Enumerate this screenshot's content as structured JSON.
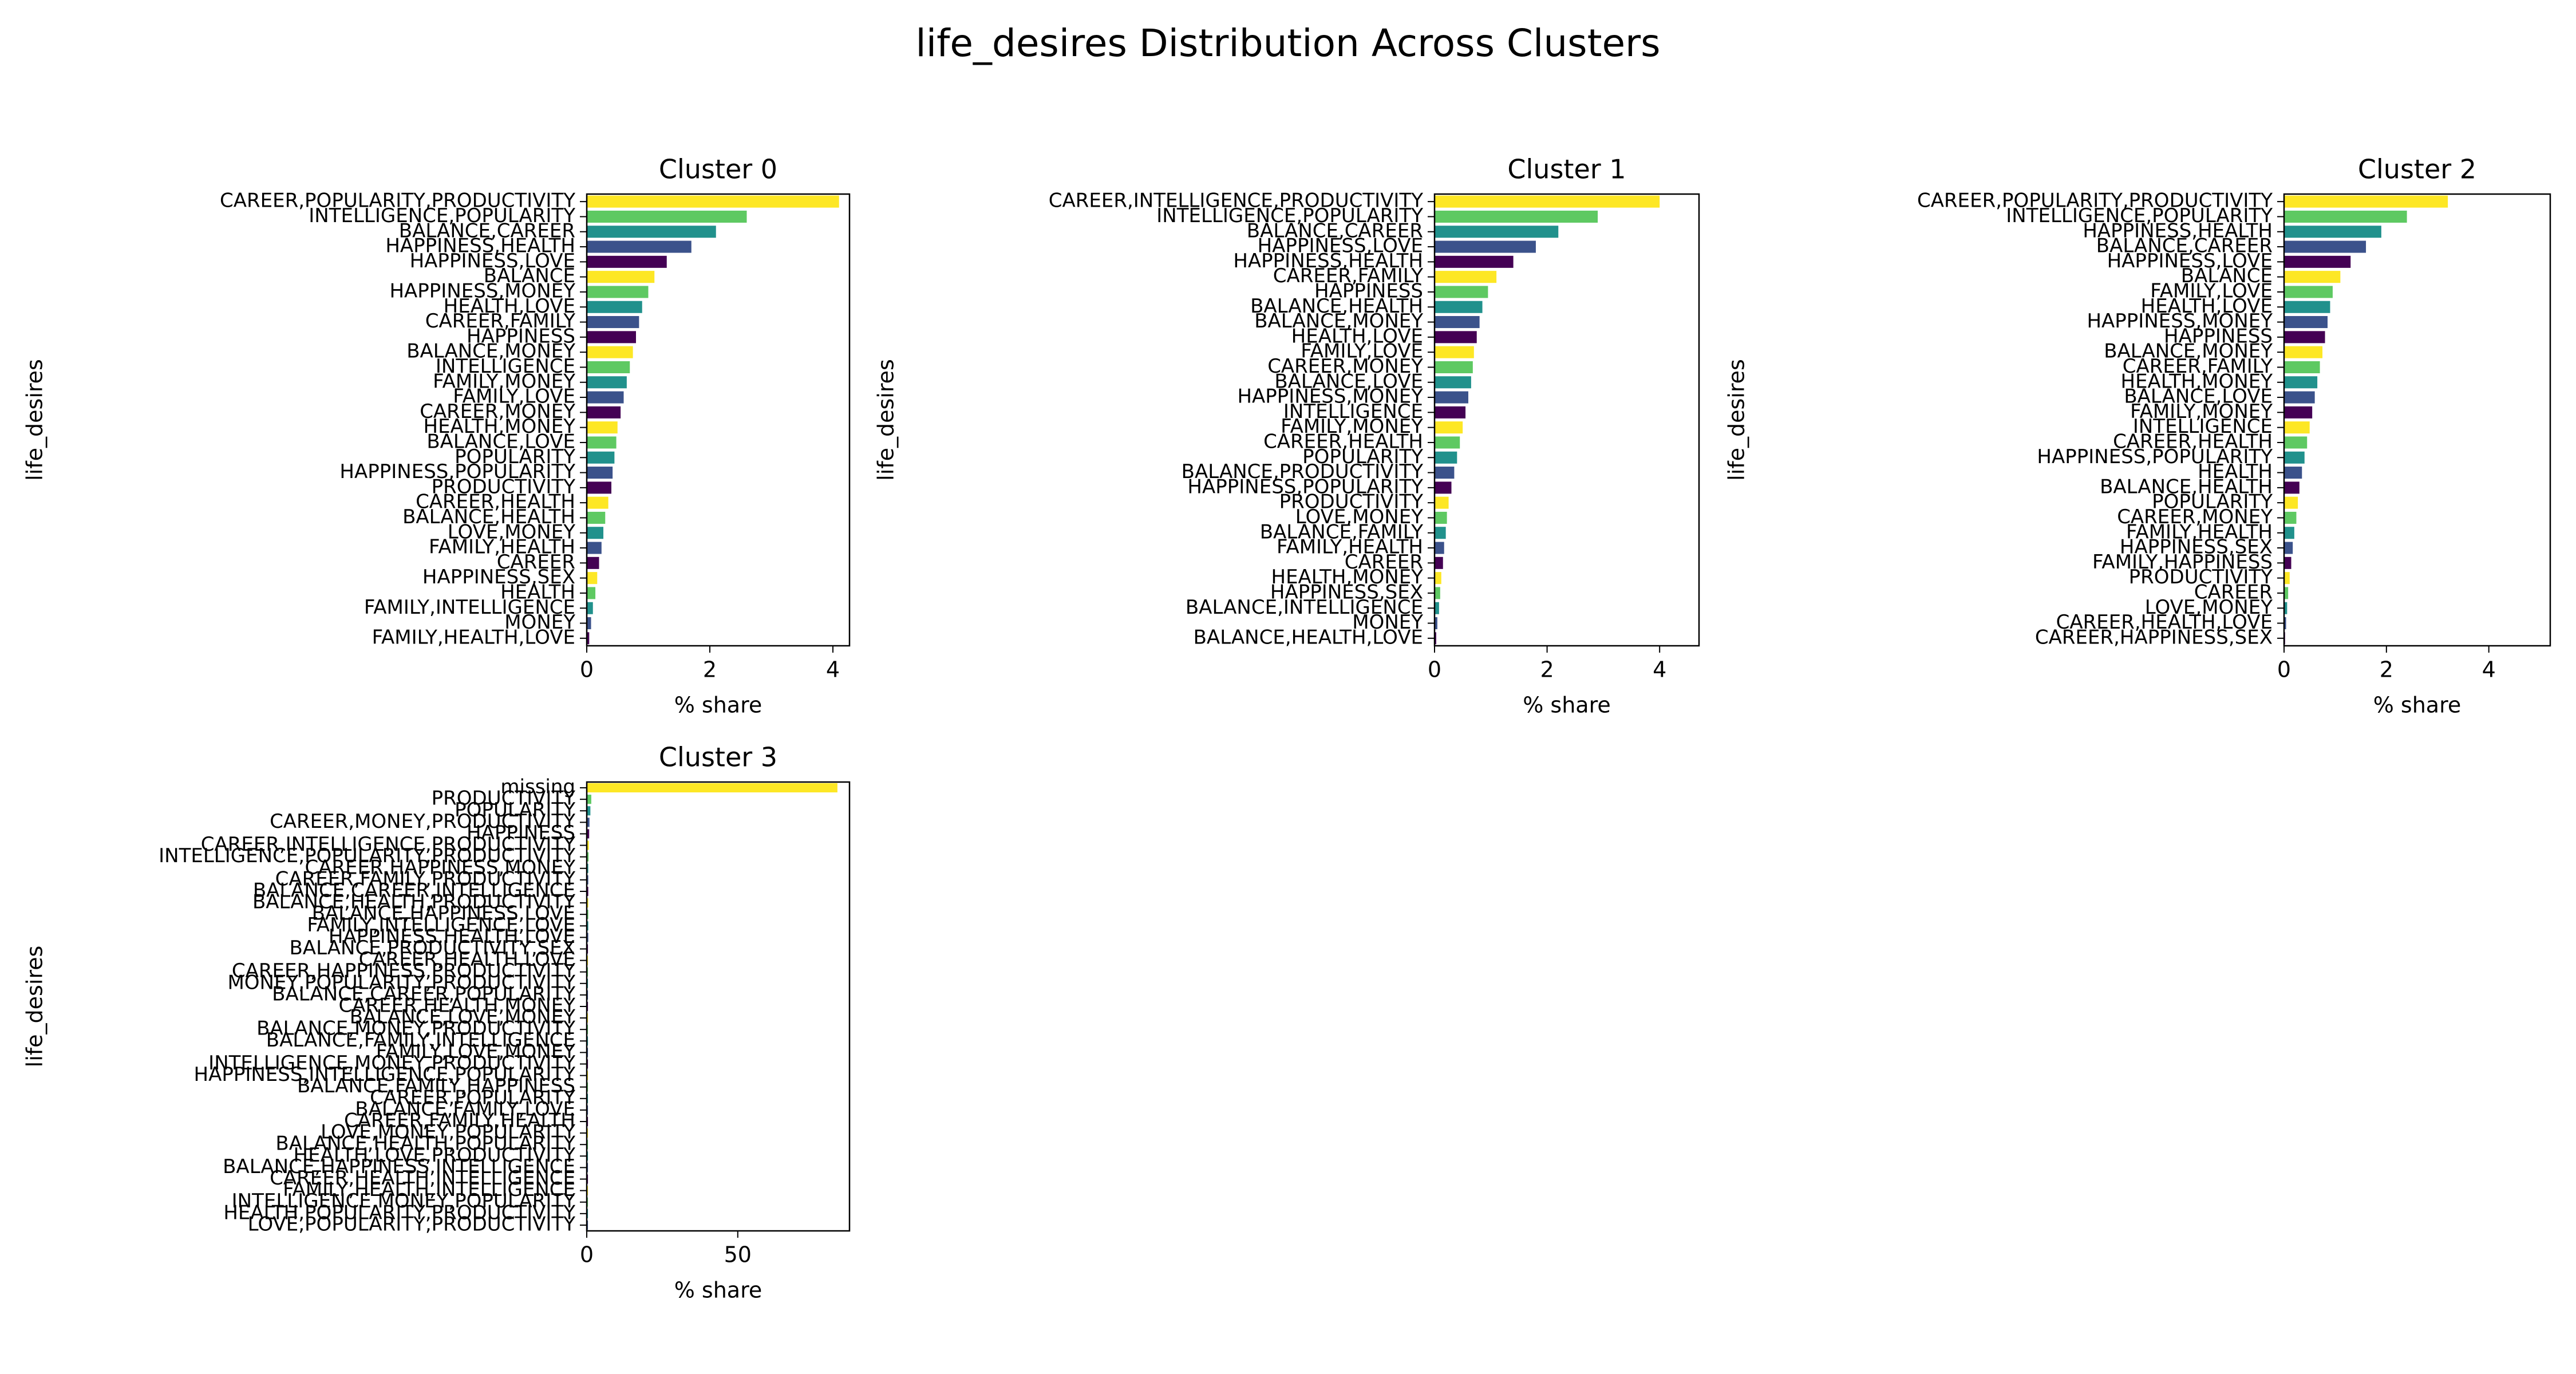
{
  "title": "life_desires Distribution Across Clusters",
  "palette": [
    "#fde725",
    "#5ec962",
    "#21918c",
    "#3b528b",
    "#440154"
  ],
  "chart_data": [
    {
      "type": "barh",
      "title": "Cluster 0",
      "xlabel": "% share",
      "ylabel": "life_desires",
      "categories": [
        "CAREER,POPULARITY,PRODUCTIVITY",
        "INTELLIGENCE,POPULARITY",
        "BALANCE,CAREER",
        "HAPPINESS,HEALTH",
        "HAPPINESS,LOVE",
        "BALANCE",
        "HAPPINESS,MONEY",
        "HEALTH,LOVE",
        "CAREER,FAMILY",
        "HAPPINESS",
        "BALANCE,MONEY",
        "INTELLIGENCE",
        "FAMILY,MONEY",
        "FAMILY,LOVE",
        "CAREER,MONEY",
        "HEALTH,MONEY",
        "BALANCE,LOVE",
        "POPULARITY",
        "HAPPINESS,POPULARITY",
        "PRODUCTIVITY",
        "CAREER,HEALTH",
        "BALANCE,HEALTH",
        "LOVE,MONEY",
        "FAMILY,HEALTH",
        "CAREER",
        "HAPPINESS,SEX",
        "HEALTH",
        "FAMILY,INTELLIGENCE",
        "MONEY",
        "FAMILY,HEALTH,LOVE"
      ],
      "values": [
        4.1,
        2.6,
        2.1,
        1.7,
        1.3,
        1.1,
        1.0,
        0.9,
        0.85,
        0.8,
        0.75,
        0.7,
        0.65,
        0.6,
        0.55,
        0.5,
        0.48,
        0.45,
        0.42,
        0.4,
        0.35,
        0.3,
        0.27,
        0.24,
        0.2,
        0.17,
        0.14,
        0.1,
        0.07,
        0.04
      ],
      "xlim": [
        0,
        4.27
      ],
      "xticks": [
        0,
        2,
        4
      ]
    },
    {
      "type": "barh",
      "title": "Cluster 1",
      "xlabel": "% share",
      "ylabel": "life_desires",
      "categories": [
        "CAREER,INTELLIGENCE,PRODUCTIVITY",
        "INTELLIGENCE,POPULARITY",
        "BALANCE,CAREER",
        "HAPPINESS,LOVE",
        "HAPPINESS,HEALTH",
        "CAREER,FAMILY",
        "HAPPINESS",
        "BALANCE,HEALTH",
        "BALANCE,MONEY",
        "HEALTH,LOVE",
        "FAMILY,LOVE",
        "CAREER,MONEY",
        "BALANCE,LOVE",
        "HAPPINESS,MONEY",
        "INTELLIGENCE",
        "FAMILY,MONEY",
        "CAREER,HEALTH",
        "POPULARITY",
        "BALANCE,PRODUCTIVITY",
        "HAPPINESS,POPULARITY",
        "PRODUCTIVITY",
        "LOVE,MONEY",
        "BALANCE,FAMILY",
        "FAMILY,HEALTH",
        "CAREER",
        "HEALTH,MONEY",
        "HAPPINESS,SEX",
        "BALANCE,INTELLIGENCE",
        "MONEY",
        "BALANCE,HEALTH,LOVE"
      ],
      "values": [
        4.0,
        2.9,
        2.2,
        1.8,
        1.4,
        1.1,
        0.95,
        0.85,
        0.8,
        0.75,
        0.7,
        0.68,
        0.65,
        0.6,
        0.55,
        0.5,
        0.45,
        0.4,
        0.35,
        0.3,
        0.25,
        0.22,
        0.2,
        0.17,
        0.15,
        0.12,
        0.1,
        0.08,
        0.05,
        0.03
      ],
      "xlim": [
        0,
        4.7
      ],
      "xticks": [
        0,
        2,
        4
      ]
    },
    {
      "type": "barh",
      "title": "Cluster 2",
      "xlabel": "% share",
      "ylabel": "life_desires",
      "categories": [
        "CAREER,POPULARITY,PRODUCTIVITY",
        "INTELLIGENCE,POPULARITY",
        "HAPPINESS,HEALTH",
        "BALANCE,CAREER",
        "HAPPINESS,LOVE",
        "BALANCE",
        "FAMILY,LOVE",
        "HEALTH,LOVE",
        "HAPPINESS,MONEY",
        "HAPPINESS",
        "BALANCE,MONEY",
        "CAREER,FAMILY",
        "HEALTH,MONEY",
        "BALANCE,LOVE",
        "FAMILY,MONEY",
        "INTELLIGENCE",
        "CAREER,HEALTH",
        "HAPPINESS,POPULARITY",
        "HEALTH",
        "BALANCE,HEALTH",
        "POPULARITY",
        "CAREER,MONEY",
        "FAMILY,HEALTH",
        "HAPPINESS,SEX",
        "FAMILY,HAPPINESS",
        "PRODUCTIVITY",
        "CAREER",
        "LOVE,MONEY",
        "CAREER,HEALTH,LOVE",
        "CAREER,HAPPINESS,SEX"
      ],
      "values": [
        3.2,
        2.4,
        1.9,
        1.6,
        1.3,
        1.1,
        0.95,
        0.9,
        0.85,
        0.8,
        0.75,
        0.7,
        0.65,
        0.6,
        0.55,
        0.5,
        0.45,
        0.4,
        0.35,
        0.3,
        0.27,
        0.24,
        0.2,
        0.17,
        0.14,
        0.11,
        0.08,
        0.06,
        0.04,
        0.02
      ],
      "xlim": [
        0,
        5.2
      ],
      "xticks": [
        0,
        2,
        4
      ]
    },
    {
      "type": "barh",
      "title": "Cluster 3",
      "xlabel": "% share",
      "ylabel": "life_desires",
      "categories": [
        "missing",
        "PRODUCTIVITY",
        "POPULARITY",
        "CAREER,MONEY,PRODUCTIVITY",
        "HAPPINESS",
        "CAREER,INTELLIGENCE,PRODUCTIVITY",
        "INTELLIGENCE,POPULARITY,PRODUCTIVITY",
        "CAREER,HAPPINESS,MONEY",
        "CAREER,FAMILY,PRODUCTIVITY",
        "BALANCE,CAREER,INTELLIGENCE",
        "BALANCE,HEALTH,PRODUCTIVITY",
        "BALANCE,HAPPINESS,LOVE",
        "FAMILY,INTELLIGENCE,LOVE",
        "HAPPINESS,HEALTH,LOVE",
        "BALANCE,PRODUCTIVITY,SEX",
        "CAREER,HEALTH,LOVE",
        "CAREER,HAPPINESS,PRODUCTIVITY",
        "MONEY,POPULARITY,PRODUCTIVITY",
        "BALANCE,CAREER,POPULARITY",
        "CAREER,HEALTH,MONEY",
        "BALANCE,LOVE,MONEY",
        "BALANCE,MONEY,PRODUCTIVITY",
        "BALANCE,FAMILY,INTELLIGENCE",
        "FAMILY,LOVE,MONEY",
        "INTELLIGENCE,MONEY,PRODUCTIVITY",
        "HAPPINESS,INTELLIGENCE,POPULARITY",
        "BALANCE,FAMILY,HAPPINESS",
        "CAREER,POPULARITY",
        "BALANCE,FAMILY,LOVE",
        "CAREER,FAMILY,HEALTH",
        "LOVE,MONEY,POPULARITY",
        "BALANCE,HEALTH,POPULARITY",
        "HEALTH,LOVE,PRODUCTIVITY",
        "BALANCE,HAPPINESS,INTELLIGENCE",
        "CAREER,HEALTH,INTELLIGENCE",
        "FAMILY,HEALTH,INTELLIGENCE",
        "INTELLIGENCE,MONEY,POPULARITY",
        "HEALTH,POPULARITY,PRODUCTIVITY",
        "LOVE,POPULARITY,PRODUCTIVITY"
      ],
      "values": [
        83,
        1.5,
        1.2,
        0.9,
        0.8,
        0.7,
        0.6,
        0.5,
        0.5,
        0.5,
        0.5,
        0.5,
        0.5,
        0.5,
        0.4,
        0.4,
        0.4,
        0.4,
        0.4,
        0.4,
        0.4,
        0.4,
        0.4,
        0.4,
        0.4,
        0.4,
        0.4,
        0.4,
        0.4,
        0.4,
        0.4,
        0.4,
        0.4,
        0.4,
        0.4,
        0.4,
        0.4,
        0.4,
        0.4
      ],
      "xlim": [
        0,
        87
      ],
      "xticks": [
        0,
        50
      ]
    }
  ]
}
